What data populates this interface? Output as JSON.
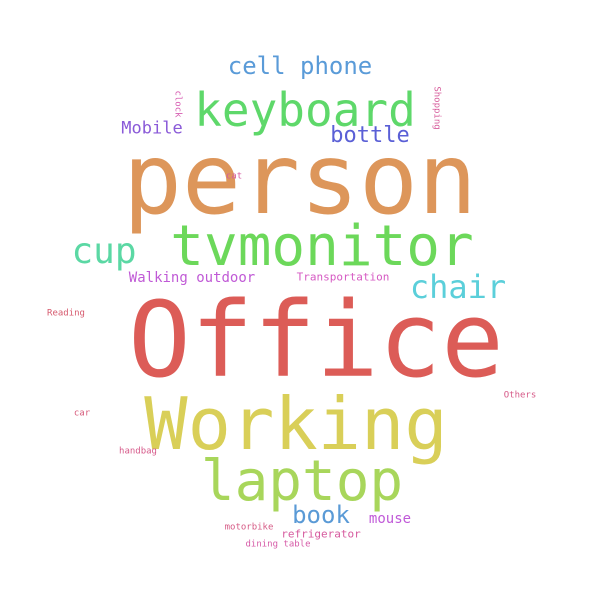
{
  "words": [
    {
      "text": "person",
      "color": "#dd965a"
    },
    {
      "text": "Office",
      "color": "#dc5c57"
    },
    {
      "text": "Working",
      "color": "#d9cf58"
    },
    {
      "text": "tvmonitor",
      "color": "#6cd85a"
    },
    {
      "text": "keyboard",
      "color": "#5ed86a"
    },
    {
      "text": "laptop",
      "color": "#a8d65b"
    },
    {
      "text": "cup",
      "color": "#5bd8a4"
    },
    {
      "text": "chair",
      "color": "#5bcfda"
    },
    {
      "text": "cell phone",
      "color": "#5a9bd8"
    },
    {
      "text": "bottle",
      "color": "#5a5fd6"
    },
    {
      "text": "book",
      "color": "#5a9ad6"
    },
    {
      "text": "Mobile",
      "color": "#8a5ad8"
    },
    {
      "text": "mouse",
      "color": "#c05ad8"
    },
    {
      "text": "Walking outdoor",
      "color": "#c05ad6"
    },
    {
      "text": "Transportation",
      "color": "#d65ac3"
    },
    {
      "text": "refrigerator",
      "color": "#d65a9e"
    },
    {
      "text": "motorbike",
      "color": "#d65a85"
    },
    {
      "text": "dining table",
      "color": "#d65aa7"
    },
    {
      "text": "handbag",
      "color": "#d65a8a"
    },
    {
      "text": "car",
      "color": "#d65a7a"
    },
    {
      "text": "Reading",
      "color": "#d65a6e"
    },
    {
      "text": "Others",
      "color": "#d65a88"
    },
    {
      "text": "cat",
      "color": "#d65aa0"
    },
    {
      "text": "clock",
      "color": "#d65ab0"
    },
    {
      "text": "Shopping",
      "color": "#d65a9a"
    }
  ]
}
